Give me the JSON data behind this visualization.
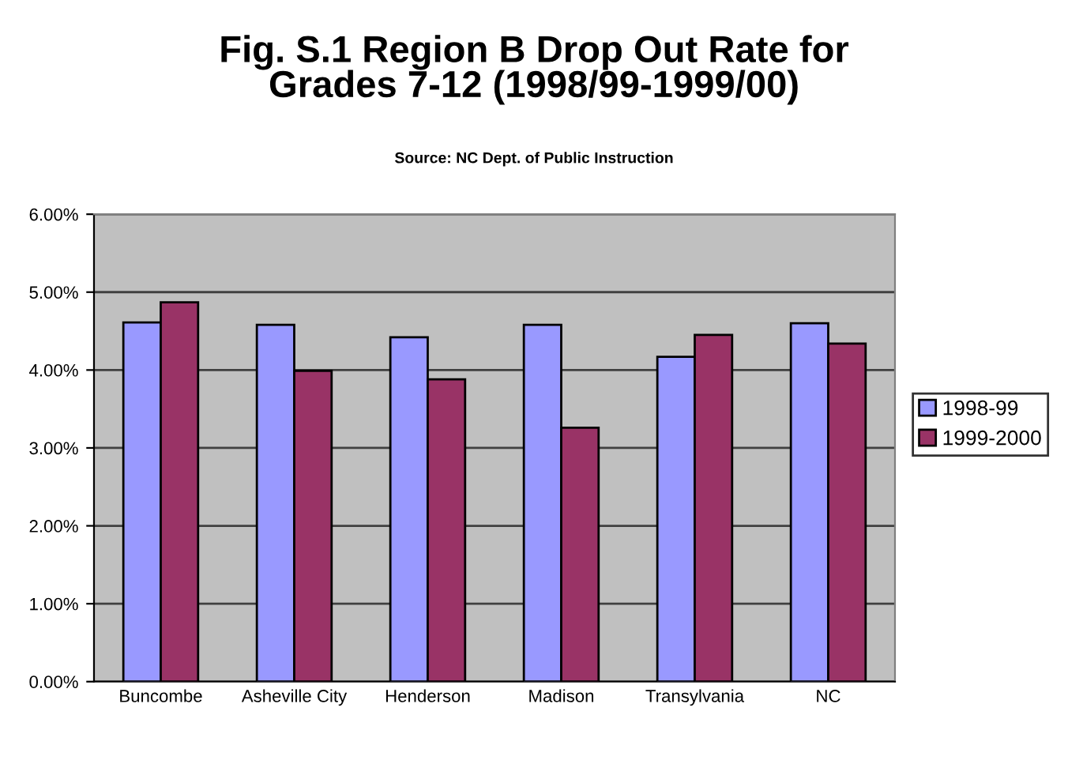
{
  "chart_data": {
    "type": "bar",
    "title": "Fig. S.1 Region B Drop Out Rate for\nGrades 7-12 (1998/99-1999/00)",
    "subtitle": "Source: NC Dept. of Public Instruction",
    "categories": [
      "Buncombe",
      "Asheville City",
      "Henderson",
      "Madison",
      "Transylvania",
      "NC"
    ],
    "series": [
      {
        "name": "1998-99",
        "color": "#9999ff",
        "values": [
          4.61,
          4.58,
          4.42,
          4.58,
          4.17,
          4.6
        ]
      },
      {
        "name": "1999-2000",
        "color": "#993366",
        "values": [
          4.87,
          3.99,
          3.88,
          3.26,
          4.45,
          4.34
        ]
      }
    ],
    "ylim": [
      0,
      6
    ],
    "yticks": [
      {
        "value": 0,
        "label": "0.00%"
      },
      {
        "value": 1,
        "label": "1.00%"
      },
      {
        "value": 2,
        "label": "2.00%"
      },
      {
        "value": 3,
        "label": "3.00%"
      },
      {
        "value": 4,
        "label": "4.00%"
      },
      {
        "value": 5,
        "label": "5.00%"
      },
      {
        "value": 6,
        "label": "6.00%"
      }
    ],
    "grid": "y",
    "legend": "right"
  }
}
